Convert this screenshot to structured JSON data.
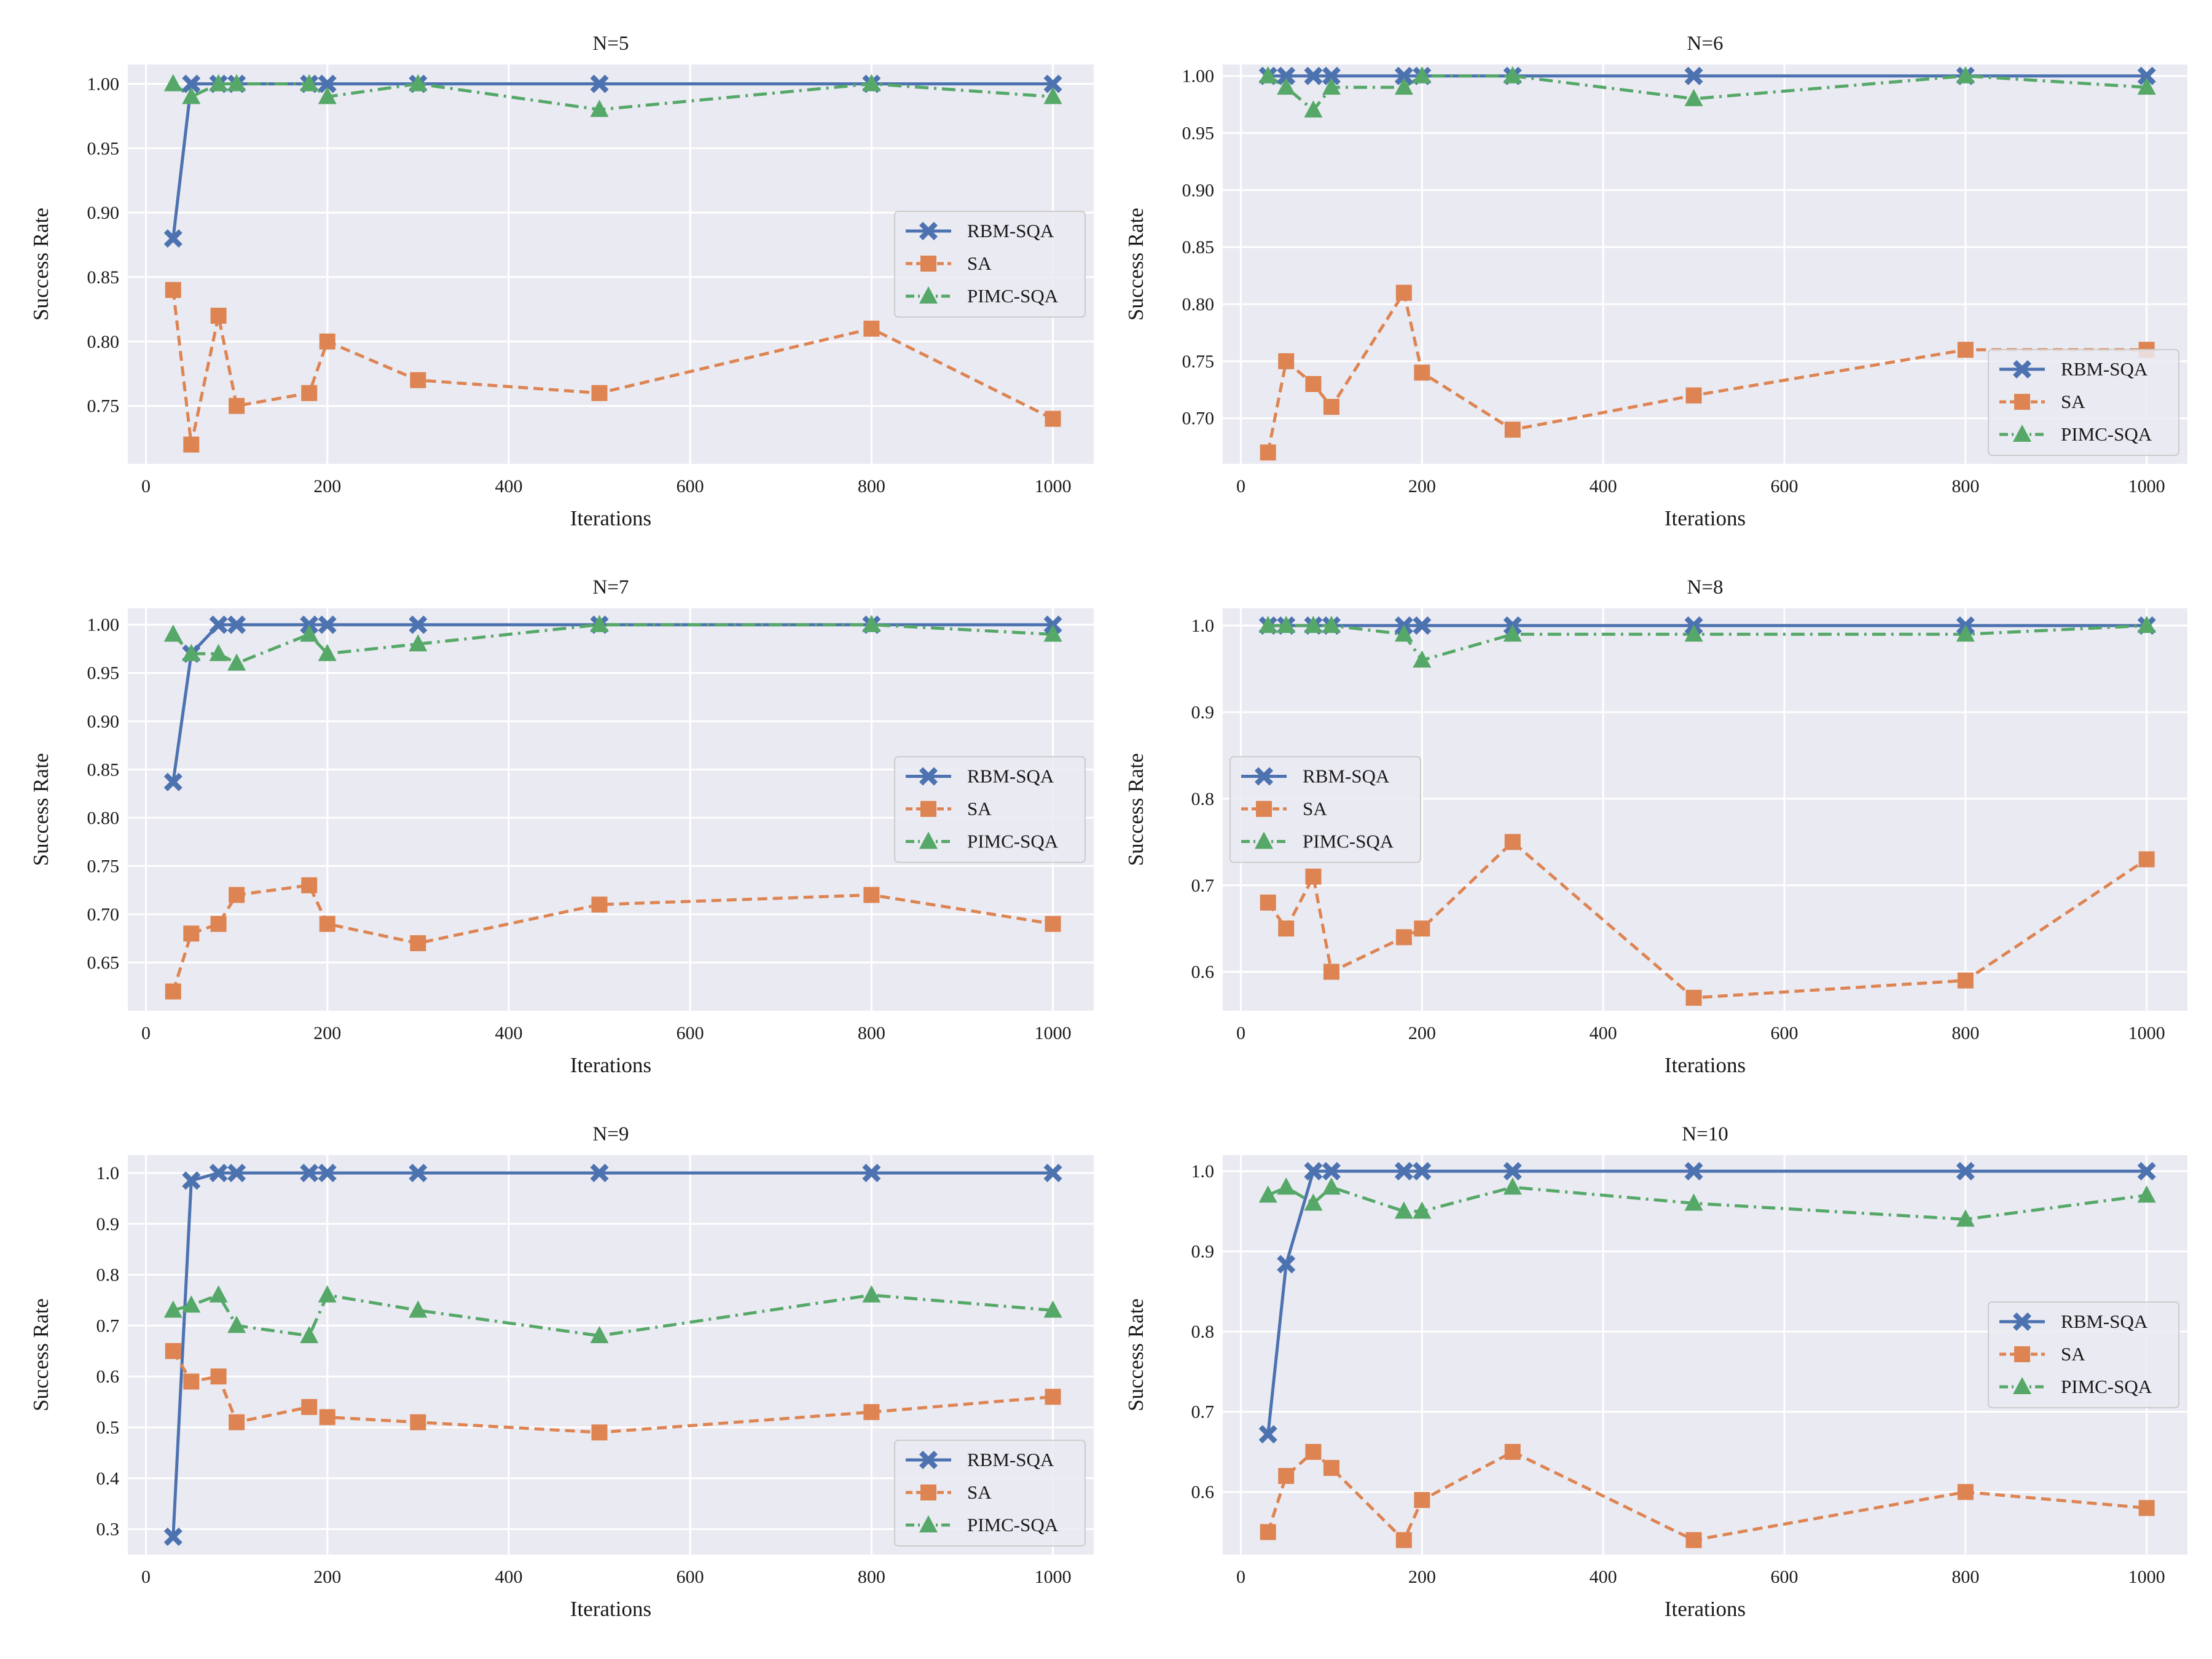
{
  "colors": {
    "background": "#eaeaf2",
    "grid": "#ffffff",
    "rbm": "#4c72b0",
    "sa": "#dd8452",
    "pimc": "#55a868"
  },
  "chart_data": [
    {
      "type": "line",
      "title": "N=5",
      "xlabel": "Iterations",
      "ylabel": "Success Rate",
      "xlim": [
        -20,
        1045
      ],
      "ylim": [
        0.705,
        1.015
      ],
      "xticks": [
        0,
        200,
        400,
        600,
        800,
        1000
      ],
      "xtick_labels": [
        "0",
        "200",
        "400",
        "600",
        "800",
        "1000"
      ],
      "yticks": [
        0.75,
        0.8,
        0.85,
        0.9,
        0.95,
        1.0
      ],
      "ytick_labels": [
        "0.75",
        "0.80",
        "0.85",
        "0.90",
        "0.95",
        "1.00"
      ],
      "legend": "right",
      "x": [
        30,
        50,
        80,
        100,
        180,
        200,
        300,
        500,
        800,
        1000
      ],
      "series": [
        {
          "name": "RBM-SQA",
          "key": "rbm",
          "values": [
            0.88,
            1.0,
            1.0,
            1.0,
            1.0,
            1.0,
            1.0,
            1.0,
            1.0,
            1.0
          ]
        },
        {
          "name": "SA",
          "key": "sa",
          "values": [
            0.84,
            0.72,
            0.82,
            0.75,
            0.76,
            0.8,
            0.77,
            0.76,
            0.81,
            0.74
          ]
        },
        {
          "name": "PIMC-SQA",
          "key": "pimc",
          "values": [
            1.0,
            0.99,
            1.0,
            1.0,
            1.0,
            0.99,
            1.0,
            0.98,
            1.0,
            0.99
          ]
        }
      ]
    },
    {
      "type": "line",
      "title": "N=6",
      "xlabel": "Iterations",
      "ylabel": "Success Rate",
      "xlim": [
        -20,
        1045
      ],
      "ylim": [
        0.66,
        1.01
      ],
      "xticks": [
        0,
        200,
        400,
        600,
        800,
        1000
      ],
      "xtick_labels": [
        "0",
        "200",
        "400",
        "600",
        "800",
        "1000"
      ],
      "yticks": [
        0.7,
        0.75,
        0.8,
        0.85,
        0.9,
        0.95,
        1.0
      ],
      "ytick_labels": [
        "0.70",
        "0.75",
        "0.80",
        "0.85",
        "0.90",
        "0.95",
        "1.00"
      ],
      "legend": "bottom-right",
      "x": [
        30,
        50,
        80,
        100,
        180,
        200,
        300,
        500,
        800,
        1000
      ],
      "series": [
        {
          "name": "RBM-SQA",
          "key": "rbm",
          "values": [
            1.0,
            1.0,
            1.0,
            1.0,
            1.0,
            1.0,
            1.0,
            1.0,
            1.0,
            1.0
          ]
        },
        {
          "name": "SA",
          "key": "sa",
          "values": [
            0.67,
            0.75,
            0.73,
            0.71,
            0.81,
            0.74,
            0.69,
            0.72,
            0.76,
            0.76
          ]
        },
        {
          "name": "PIMC-SQA",
          "key": "pimc",
          "values": [
            1.0,
            0.99,
            0.97,
            0.99,
            0.99,
            1.0,
            1.0,
            0.98,
            1.0,
            0.99
          ]
        }
      ]
    },
    {
      "type": "line",
      "title": "N=7",
      "xlabel": "Iterations",
      "ylabel": "Success Rate",
      "xlim": [
        -20,
        1045
      ],
      "ylim": [
        0.6,
        1.017
      ],
      "xticks": [
        0,
        200,
        400,
        600,
        800,
        1000
      ],
      "xtick_labels": [
        "0",
        "200",
        "400",
        "600",
        "800",
        "1000"
      ],
      "yticks": [
        0.65,
        0.7,
        0.75,
        0.8,
        0.85,
        0.9,
        0.95,
        1.0
      ],
      "ytick_labels": [
        "0.65",
        "0.70",
        "0.75",
        "0.80",
        "0.85",
        "0.90",
        "0.95",
        "1.00"
      ],
      "legend": "right",
      "x": [
        30,
        50,
        80,
        100,
        180,
        200,
        300,
        500,
        800,
        1000
      ],
      "series": [
        {
          "name": "RBM-SQA",
          "key": "rbm",
          "values": [
            0.837,
            0.97,
            1.0,
            1.0,
            1.0,
            1.0,
            1.0,
            1.0,
            1.0,
            1.0
          ]
        },
        {
          "name": "SA",
          "key": "sa",
          "values": [
            0.62,
            0.68,
            0.69,
            0.72,
            0.73,
            0.69,
            0.67,
            0.71,
            0.72,
            0.69
          ]
        },
        {
          "name": "PIMC-SQA",
          "key": "pimc",
          "values": [
            0.99,
            0.97,
            0.97,
            0.96,
            0.99,
            0.97,
            0.98,
            1.0,
            1.0,
            0.99
          ]
        }
      ]
    },
    {
      "type": "line",
      "title": "N=8",
      "xlabel": "Iterations",
      "ylabel": "Success Rate",
      "xlim": [
        -20,
        1045
      ],
      "ylim": [
        0.555,
        1.02
      ],
      "xticks": [
        0,
        200,
        400,
        600,
        800,
        1000
      ],
      "xtick_labels": [
        "0",
        "200",
        "400",
        "600",
        "800",
        "1000"
      ],
      "yticks": [
        0.6,
        0.7,
        0.8,
        0.9,
        1.0
      ],
      "ytick_labels": [
        "0.6",
        "0.7",
        "0.8",
        "0.9",
        "1.0"
      ],
      "legend": "left",
      "x": [
        30,
        50,
        80,
        100,
        180,
        200,
        300,
        500,
        800,
        1000
      ],
      "series": [
        {
          "name": "RBM-SQA",
          "key": "rbm",
          "values": [
            1.0,
            1.0,
            1.0,
            1.0,
            1.0,
            1.0,
            1.0,
            1.0,
            1.0,
            1.0
          ]
        },
        {
          "name": "SA",
          "key": "sa",
          "values": [
            0.68,
            0.65,
            0.71,
            0.6,
            0.64,
            0.65,
            0.75,
            0.57,
            0.59,
            0.73
          ]
        },
        {
          "name": "PIMC-SQA",
          "key": "pimc",
          "values": [
            1.0,
            1.0,
            1.0,
            1.0,
            0.99,
            0.96,
            0.99,
            0.99,
            0.99,
            1.0
          ]
        }
      ]
    },
    {
      "type": "line",
      "title": "N=9",
      "xlabel": "Iterations",
      "ylabel": "Success Rate",
      "xlim": [
        -20,
        1045
      ],
      "ylim": [
        0.25,
        1.035
      ],
      "xticks": [
        0,
        200,
        400,
        600,
        800,
        1000
      ],
      "xtick_labels": [
        "0",
        "200",
        "400",
        "600",
        "800",
        "1000"
      ],
      "yticks": [
        0.3,
        0.4,
        0.5,
        0.6,
        0.7,
        0.8,
        0.9,
        1.0
      ],
      "ytick_labels": [
        "0.3",
        "0.4",
        "0.5",
        "0.6",
        "0.7",
        "0.8",
        "0.9",
        "1.0"
      ],
      "legend": "bottom-right",
      "x": [
        30,
        50,
        80,
        100,
        180,
        200,
        300,
        500,
        800,
        1000
      ],
      "series": [
        {
          "name": "RBM-SQA",
          "key": "rbm",
          "values": [
            0.285,
            0.985,
            1.0,
            1.0,
            1.0,
            1.0,
            1.0,
            1.0,
            1.0,
            1.0
          ]
        },
        {
          "name": "SA",
          "key": "sa",
          "values": [
            0.65,
            0.59,
            0.6,
            0.51,
            0.54,
            0.52,
            0.51,
            0.49,
            0.53,
            0.56
          ]
        },
        {
          "name": "PIMC-SQA",
          "key": "pimc",
          "values": [
            0.73,
            0.74,
            0.76,
            0.7,
            0.68,
            0.76,
            0.73,
            0.68,
            0.76,
            0.73
          ]
        }
      ]
    },
    {
      "type": "line",
      "title": "N=10",
      "xlabel": "Iterations",
      "ylabel": "Success Rate",
      "xlim": [
        -20,
        1045
      ],
      "ylim": [
        0.522,
        1.02
      ],
      "xticks": [
        0,
        200,
        400,
        600,
        800,
        1000
      ],
      "xtick_labels": [
        "0",
        "200",
        "400",
        "600",
        "800",
        "1000"
      ],
      "yticks": [
        0.6,
        0.7,
        0.8,
        0.9,
        1.0
      ],
      "ytick_labels": [
        "0.6",
        "0.7",
        "0.8",
        "0.9",
        "1.0"
      ],
      "legend": "right",
      "x": [
        30,
        50,
        80,
        100,
        180,
        200,
        300,
        500,
        800,
        1000
      ],
      "series": [
        {
          "name": "RBM-SQA",
          "key": "rbm",
          "values": [
            0.672,
            0.884,
            1.0,
            1.0,
            1.0,
            1.0,
            1.0,
            1.0,
            1.0,
            1.0
          ]
        },
        {
          "name": "SA",
          "key": "sa",
          "values": [
            0.55,
            0.62,
            0.65,
            0.63,
            0.54,
            0.59,
            0.65,
            0.54,
            0.6,
            0.58
          ]
        },
        {
          "name": "PIMC-SQA",
          "key": "pimc",
          "values": [
            0.97,
            0.98,
            0.96,
            0.98,
            0.95,
            0.95,
            0.98,
            0.96,
            0.94,
            0.97
          ]
        }
      ]
    }
  ]
}
